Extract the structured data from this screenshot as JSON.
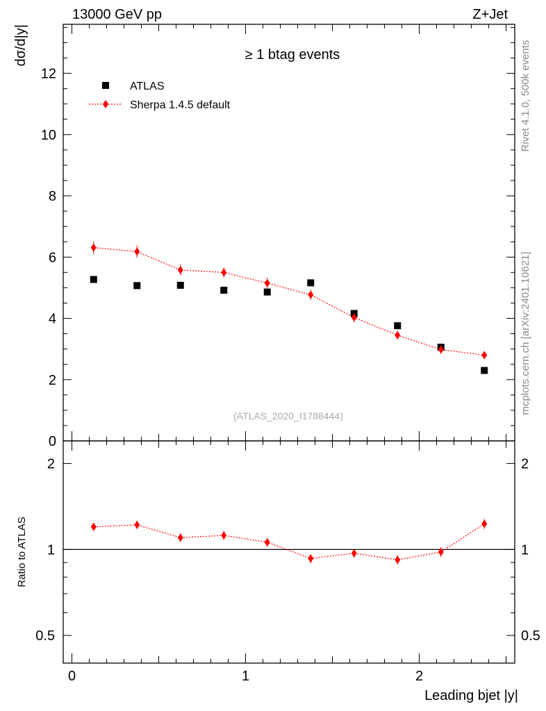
{
  "header": {
    "left": "13000 GeV pp",
    "right": "Z+Jet"
  },
  "side_text": {
    "rivet": "Rivet 4.1.0,  500k events",
    "mcplots": "mcplots.cern.ch [arXiv:2401.10621]"
  },
  "chart_data": [
    {
      "type": "scatter",
      "panel": "main",
      "title": "≥ 1 btag events",
      "xlabel": "Leading bjet |y|",
      "ylabel": "dσ/d|y|",
      "xlim": [
        -0.05,
        2.55
      ],
      "ylim": [
        0,
        13.6
      ],
      "yticks": [
        0,
        2,
        4,
        6,
        8,
        10,
        12
      ],
      "ytick_labels": [
        "0",
        "2",
        "4",
        "6",
        "8",
        "10",
        "12"
      ],
      "watermark": "(ATLAS_2020_I1788444)",
      "legend_position": "top-left",
      "series": [
        {
          "name": "ATLAS",
          "color": "#000000",
          "marker": "square",
          "x": [
            0.125,
            0.375,
            0.625,
            0.875,
            1.125,
            1.375,
            1.625,
            1.875,
            2.125,
            2.375
          ],
          "y": [
            5.27,
            5.07,
            5.08,
            4.92,
            4.86,
            5.16,
            4.16,
            3.76,
            3.06,
            2.3
          ]
        },
        {
          "name": "Sherpa 1.4.5 default",
          "color": "#ff0000",
          "marker": "diamond",
          "line": "dotted",
          "x": [
            0.125,
            0.375,
            0.625,
            0.875,
            1.125,
            1.375,
            1.625,
            1.875,
            2.125,
            2.375
          ],
          "y": [
            6.31,
            6.18,
            5.58,
            5.5,
            5.15,
            4.77,
            4.03,
            3.45,
            2.98,
            2.8
          ],
          "yerr": [
            0.21,
            0.2,
            0.18,
            0.17,
            0.17,
            0.17,
            0.15,
            0.14,
            0.13,
            0.13
          ]
        }
      ]
    },
    {
      "type": "scatter",
      "panel": "ratio",
      "ylabel": "Ratio to ATLAS",
      "xlabel": "Leading bjet |y|",
      "xlim": [
        -0.05,
        2.55
      ],
      "ylim": [
        0.4,
        2.4
      ],
      "yscale": "log",
      "yticks": [
        0.5,
        1,
        2
      ],
      "ytick_labels": [
        "0.5",
        "1",
        "2"
      ],
      "xticks": [
        0,
        1,
        2
      ],
      "xtick_labels": [
        "0",
        "1",
        "2"
      ],
      "reference_line": 1,
      "series": [
        {
          "name": "Sherpa 1.4.5 default",
          "color": "#ff0000",
          "marker": "diamond",
          "line": "dotted",
          "x": [
            0.125,
            0.375,
            0.625,
            0.875,
            1.125,
            1.375,
            1.625,
            1.875,
            2.125,
            2.375
          ],
          "y": [
            1.2,
            1.22,
            1.1,
            1.12,
            1.06,
            0.93,
            0.97,
            0.92,
            0.98,
            1.23
          ],
          "yerr": [
            0.04,
            0.04,
            0.04,
            0.04,
            0.04,
            0.035,
            0.035,
            0.035,
            0.04,
            0.05
          ]
        }
      ]
    }
  ]
}
